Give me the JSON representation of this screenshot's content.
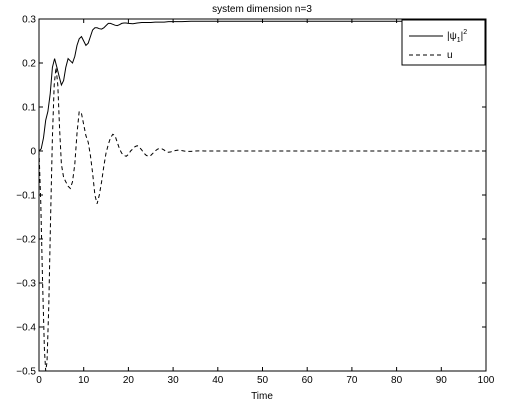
{
  "chart_data": {
    "type": "line",
    "title": "system dimension n=3",
    "xlabel": "Time",
    "ylabel": "",
    "xlim": [
      0,
      100
    ],
    "ylim": [
      -0.5,
      0.3
    ],
    "xticks": [
      0,
      10,
      20,
      30,
      40,
      50,
      60,
      70,
      80,
      90,
      100
    ],
    "xtick_labels": [
      "0",
      "10",
      "20",
      "30",
      "40",
      "50",
      "60",
      "70",
      "80",
      "90",
      "100"
    ],
    "yticks": [
      -0.5,
      -0.4,
      -0.3,
      -0.2,
      -0.1,
      0,
      0.1,
      0.2,
      0.3
    ],
    "ytick_labels": [
      "−0.5",
      "−0.4",
      "−0.3",
      "−0.2",
      "−0.1",
      "0",
      "0.1",
      "0.2",
      "0.3"
    ],
    "grid": false,
    "legend_position": "top-right",
    "series": [
      {
        "name": "|ψ1|²",
        "legend_main": "|ψ",
        "legend_sub": "1",
        "legend_tail": "|",
        "legend_sup": "2",
        "line_style": "solid",
        "color": "#000000",
        "x": [
          0,
          0.5,
          1,
          1.5,
          2,
          2.5,
          3,
          3.5,
          4,
          4.5,
          5,
          5.5,
          6,
          6.5,
          7,
          7.5,
          8,
          8.5,
          9,
          9.5,
          10,
          10.5,
          11,
          11.5,
          12,
          12.5,
          13,
          13.5,
          14,
          14.5,
          15,
          15.5,
          16,
          16.5,
          17,
          17.5,
          18,
          18.5,
          19,
          19.5,
          20,
          21,
          22,
          23,
          24,
          25,
          26,
          27,
          28,
          29,
          30,
          32,
          34,
          36,
          38,
          40,
          45,
          50,
          60,
          70,
          80,
          90,
          100
        ],
        "y": [
          0,
          0.005,
          0.03,
          0.07,
          0.09,
          0.13,
          0.19,
          0.21,
          0.19,
          0.17,
          0.15,
          0.16,
          0.19,
          0.21,
          0.205,
          0.2,
          0.215,
          0.24,
          0.255,
          0.26,
          0.25,
          0.24,
          0.245,
          0.26,
          0.275,
          0.28,
          0.28,
          0.278,
          0.277,
          0.28,
          0.285,
          0.29,
          0.29,
          0.288,
          0.286,
          0.285,
          0.287,
          0.29,
          0.291,
          0.291,
          0.29,
          0.289,
          0.291,
          0.292,
          0.292,
          0.292,
          0.293,
          0.293,
          0.293,
          0.294,
          0.294,
          0.294,
          0.295,
          0.295,
          0.295,
          0.295,
          0.295,
          0.295,
          0.295,
          0.295,
          0.295,
          0.295,
          0.295
        ]
      },
      {
        "name": "u",
        "line_style": "dashed",
        "color": "#000000",
        "x": [
          0,
          0.4,
          0.8,
          1.2,
          1.5,
          1.8,
          2.2,
          2.6,
          3,
          3.4,
          3.8,
          4.2,
          4.6,
          5,
          5.5,
          6,
          6.5,
          7,
          7.5,
          8,
          8.5,
          9,
          9.5,
          10,
          10.5,
          11,
          11.5,
          12,
          12.5,
          13,
          13.5,
          14,
          14.5,
          15,
          15.5,
          16,
          16.5,
          17,
          17.5,
          18,
          18.5,
          19,
          19.5,
          20,
          20.5,
          21,
          21.5,
          22,
          22.5,
          23,
          23.5,
          24,
          24.5,
          25,
          25.5,
          26,
          26.5,
          27,
          27.5,
          28,
          28.5,
          29,
          29.5,
          30,
          31,
          32,
          33,
          34,
          35,
          36,
          37,
          38,
          39,
          40,
          45,
          50,
          60,
          70,
          80,
          90,
          100
        ],
        "y": [
          0,
          -0.12,
          -0.3,
          -0.45,
          -0.5,
          -0.48,
          -0.35,
          -0.15,
          0.03,
          0.15,
          0.19,
          0.15,
          0.05,
          -0.03,
          -0.06,
          -0.07,
          -0.08,
          -0.085,
          -0.07,
          -0.03,
          0.04,
          0.09,
          0.085,
          0.06,
          0.035,
          0.02,
          -0.01,
          -0.05,
          -0.1,
          -0.12,
          -0.1,
          -0.07,
          -0.035,
          -0.005,
          0.015,
          0.03,
          0.038,
          0.035,
          0.02,
          0.005,
          -0.005,
          -0.01,
          -0.012,
          -0.008,
          0,
          0.005,
          0.01,
          0.012,
          0.008,
          0.002,
          -0.005,
          -0.01,
          -0.012,
          -0.01,
          -0.005,
          0,
          0.004,
          0.006,
          0.005,
          0.002,
          -0.002,
          -0.003,
          -0.002,
          0,
          0.002,
          0.001,
          -0.001,
          -0.001,
          0,
          0.0005,
          0,
          0,
          0,
          0,
          0,
          0,
          0,
          0,
          0,
          0,
          0
        ]
      }
    ]
  }
}
